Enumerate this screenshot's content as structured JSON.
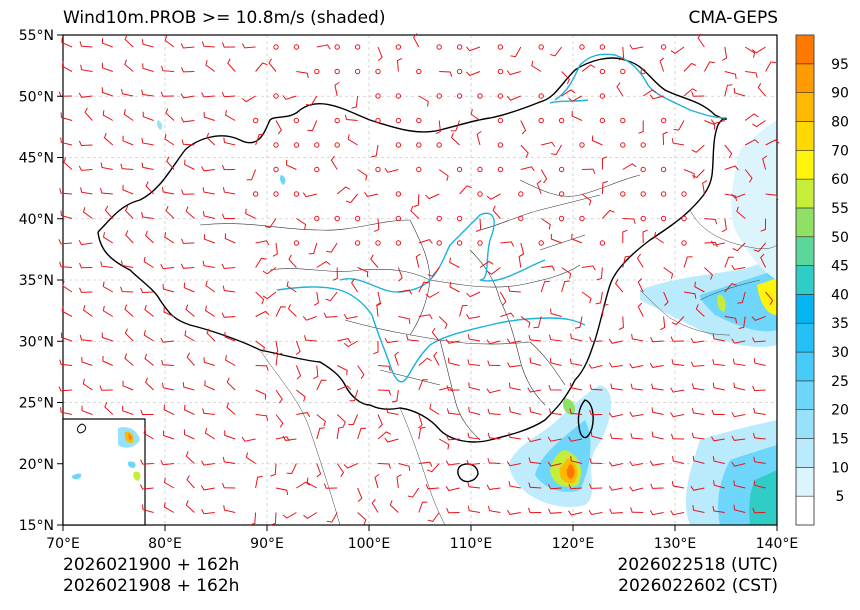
{
  "header": {
    "title": "Wind10m.PROB >= 10.8m/s (shaded)",
    "model": "CMA-GEPS"
  },
  "footer": {
    "init_utc": "2026021900 + 162h",
    "init_cst": "2026021908 + 162h",
    "valid_utc": "2026022518 (UTC)",
    "valid_cst": "2026022602 (CST)"
  },
  "map": {
    "extent": {
      "lon_min": 70,
      "lon_max": 140,
      "lat_min": 15,
      "lat_max": 55
    },
    "lon_ticks": [
      "70°E",
      "80°E",
      "90°E",
      "100°E",
      "110°E",
      "120°E",
      "130°E",
      "140°E"
    ],
    "lat_ticks": [
      "15°N",
      "20°N",
      "25°N",
      "30°N",
      "35°N",
      "40°N",
      "45°N",
      "50°N",
      "55°N"
    ],
    "gridline_style": "dashed light gray",
    "wind_barb_color": "#e8141c",
    "river_color": "#1ab3dc",
    "border_color": "#000000",
    "inset": "South China Sea islands"
  },
  "colorbar": {
    "labels": [
      "5",
      "10",
      "15",
      "20",
      "25",
      "30",
      "35",
      "40",
      "45",
      "50",
      "55",
      "60",
      "70",
      "80",
      "90",
      "95"
    ],
    "colors": [
      "#ffffff",
      "#dcf5fd",
      "#baebfc",
      "#97e1fb",
      "#6ed6fa",
      "#47cbf9",
      "#26c0f7",
      "#05b5f2",
      "#30cdc6",
      "#5cd79a",
      "#8fe064",
      "#c6ed3a",
      "#fff40b",
      "#ffd800",
      "#ffb900",
      "#ff9b00",
      "#ff7800"
    ]
  }
}
